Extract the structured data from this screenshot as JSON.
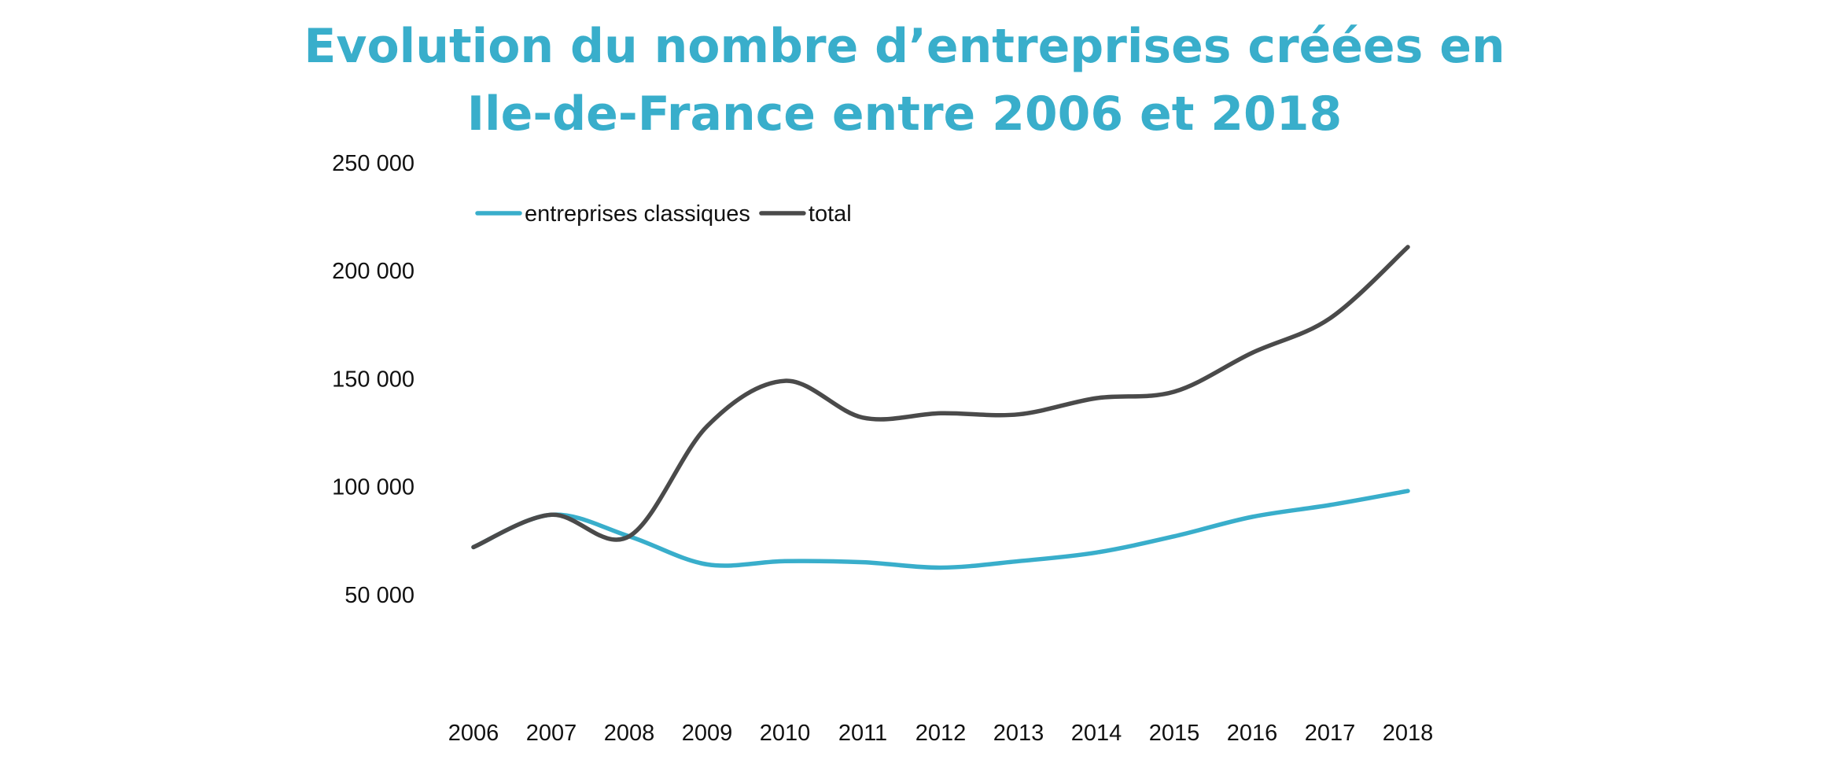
{
  "chart_data": {
    "type": "line",
    "title_lines": [
      "Evolution du nombre d’entreprises créées en",
      "Ile-de-France entre 2006 et 2018"
    ],
    "xlabel": "",
    "ylabel": "",
    "categories": [
      "2006",
      "2007",
      "2008",
      "2009",
      "2010",
      "2011",
      "2012",
      "2013",
      "2014",
      "2015",
      "2016",
      "2017",
      "2018"
    ],
    "ylim": [
      0,
      250000
    ],
    "y_ticks": [
      {
        "value": 50000,
        "label": "50 000"
      },
      {
        "value": 100000,
        "label": "100 000"
      },
      {
        "value": 150000,
        "label": "150 000"
      },
      {
        "value": 200000,
        "label": "200 000"
      },
      {
        "value": 250000,
        "label": "250 000"
      }
    ],
    "grid": false,
    "legend_position": "top-left",
    "series": [
      {
        "name": "entreprises classiques",
        "color": "#39aecb",
        "values": [
          72000,
          87000,
          77000,
          64000,
          65500,
          65000,
          62500,
          65500,
          69500,
          77000,
          86000,
          91500,
          98000
        ]
      },
      {
        "name": "total",
        "color": "#4a4a4a",
        "values": [
          72000,
          87000,
          77000,
          128000,
          149000,
          132000,
          134000,
          133500,
          141000,
          144000,
          162000,
          178000,
          211000
        ]
      }
    ]
  }
}
